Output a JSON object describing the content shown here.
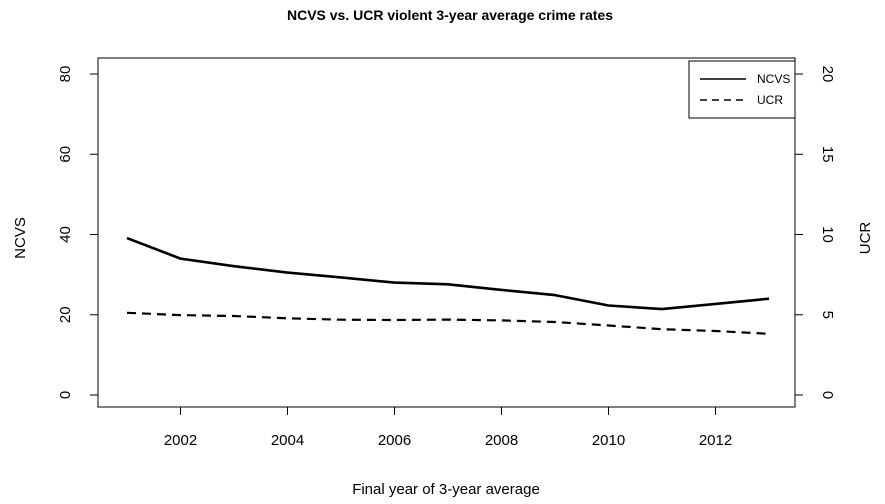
{
  "chart_data": {
    "type": "line",
    "title": "NCVS vs. UCR violent 3-year average crime rates",
    "xlabel": "Final year of 3-year average",
    "ylabel_left": "NCVS",
    "ylabel_right": "UCR",
    "xlim": [
      2001,
      2013
    ],
    "ylim_left": [
      0,
      80
    ],
    "ylim_right": [
      0,
      20
    ],
    "x_ticks": [
      2002,
      2004,
      2006,
      2008,
      2010,
      2012
    ],
    "y_ticks_left": [
      0,
      20,
      40,
      60,
      80
    ],
    "y_ticks_right": [
      0,
      5,
      10,
      15,
      20
    ],
    "grid": false,
    "legend_position": "top-right",
    "x": [
      2001,
      2002,
      2003,
      2004,
      2005,
      2006,
      2007,
      2008,
      2009,
      2010,
      2011,
      2012,
      2013
    ],
    "series": [
      {
        "name": "NCVS",
        "axis": "left",
        "line_style": "solid",
        "values": [
          39.1,
          34.0,
          32.1,
          30.5,
          29.3,
          28.0,
          27.6,
          26.2,
          24.9,
          22.3,
          21.4,
          22.7,
          24.0
        ]
      },
      {
        "name": "UCR",
        "axis": "right",
        "line_style": "dashed",
        "values": [
          5.12,
          4.98,
          4.92,
          4.78,
          4.69,
          4.67,
          4.7,
          4.65,
          4.55,
          4.33,
          4.1,
          3.99,
          3.81
        ]
      }
    ]
  }
}
